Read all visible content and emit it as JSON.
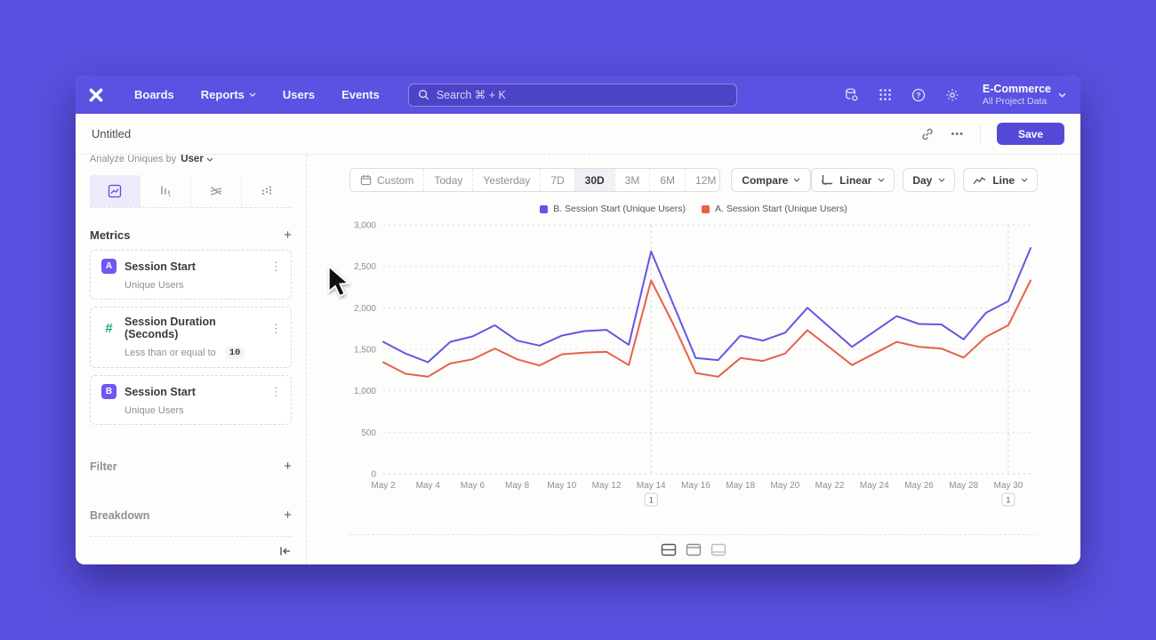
{
  "navbar": {
    "items": [
      "Boards",
      "Reports",
      "Users",
      "Events"
    ],
    "search_placeholder": "Search  ⌘ + K",
    "project": {
      "name": "E-Commerce",
      "subtitle": "All Project Data"
    }
  },
  "toolbar": {
    "title": "Untitled",
    "save_label": "Save",
    "more_glyph": "•••"
  },
  "sidebar": {
    "analyze_prefix": "Analyze Uniques by",
    "analyze_value": "User",
    "metrics_header": "Metrics",
    "metrics": [
      {
        "badge": "A",
        "name": "Session Start",
        "subtitle": "Unique Users"
      },
      {
        "badge": "#",
        "name": "Session Duration (Seconds)",
        "condition": "Less than or equal to",
        "condition_value": "10"
      },
      {
        "badge": "B",
        "name": "Session Start",
        "subtitle": "Unique Users"
      }
    ],
    "filter_label": "Filter",
    "breakdown_label": "Breakdown"
  },
  "controls": {
    "ranges": [
      "Custom",
      "Today",
      "Yesterday",
      "7D",
      "30D",
      "3M",
      "6M",
      "12M"
    ],
    "selected_range": "30D",
    "compare_label": "Compare",
    "scale_label": "Linear",
    "interval_label": "Day",
    "chart_type_label": "Line"
  },
  "icons": {
    "kebab": "⋮",
    "plus": "+"
  },
  "chart_data": {
    "type": "line",
    "categories": [
      "May 2",
      "May 3",
      "May 4",
      "May 5",
      "May 6",
      "May 7",
      "May 8",
      "May 9",
      "May 10",
      "May 11",
      "May 12",
      "May 13",
      "May 14",
      "May 15",
      "May 16",
      "May 17",
      "May 18",
      "May 19",
      "May 20",
      "May 21",
      "May 22",
      "May 23",
      "May 24",
      "May 25",
      "May 26",
      "May 27",
      "May 28",
      "May 29",
      "May 30",
      "May 31"
    ],
    "xtick_labels": [
      "May 2",
      "May 4",
      "May 6",
      "May 8",
      "May 10",
      "May 12",
      "May 14",
      "May 16",
      "May 18",
      "May 20",
      "May 22",
      "May 24",
      "May 26",
      "May 28",
      "May 30"
    ],
    "series": [
      {
        "name": "B. Session Start (Unique Users)",
        "color": "#6157e6",
        "values": [
          1590,
          1450,
          1345,
          1590,
          1655,
          1790,
          1605,
          1545,
          1665,
          1720,
          1735,
          1555,
          2680,
          2040,
          1395,
          1370,
          1665,
          1605,
          1700,
          2000,
          1765,
          1530,
          1715,
          1900,
          1805,
          1800,
          1620,
          1940,
          2080,
          2720
        ]
      },
      {
        "name": "A. Session Start (Unique Users)",
        "color": "#e8604a",
        "values": [
          1345,
          1205,
          1170,
          1330,
          1380,
          1510,
          1380,
          1305,
          1440,
          1460,
          1470,
          1310,
          2330,
          1800,
          1215,
          1170,
          1395,
          1360,
          1450,
          1730,
          1520,
          1310,
          1450,
          1590,
          1530,
          1510,
          1400,
          1650,
          1790,
          2330
        ]
      }
    ],
    "ylim": [
      0,
      3000
    ],
    "yticks": [
      0,
      500,
      1000,
      1500,
      2000,
      2500,
      3000
    ],
    "annotations": [
      {
        "category": "May 14",
        "label": "1"
      },
      {
        "category": "May 30",
        "label": "1"
      }
    ],
    "legend_position": "top",
    "grid": true
  }
}
